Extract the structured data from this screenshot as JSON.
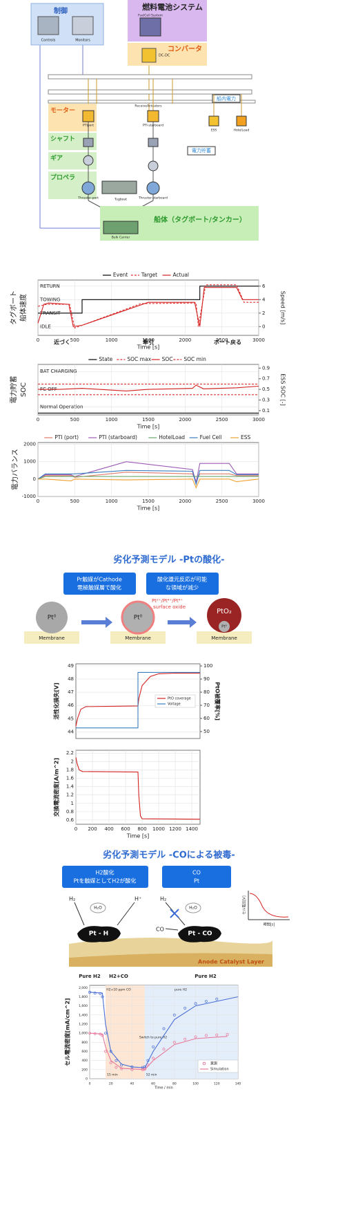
{
  "diagram": {
    "control": {
      "title": "制御",
      "items": [
        "Controls",
        "Monitors"
      ]
    },
    "fuel_cell": {
      "title": "燃料電池システム",
      "label": "FuelCell System"
    },
    "converter": {
      "title": "コンバータ",
      "label": "DC-DC"
    },
    "bus": "ReceiveActuators",
    "onboard_power": "船内電力",
    "storage": "電力貯蓄",
    "groups": [
      "モーター",
      "シャフト",
      "ギア",
      "プロペラ"
    ],
    "components": [
      "PTIport",
      "PTI-starboard",
      "Thruster-port",
      "Thruster-starboard",
      "Tugboat",
      "Contact_Contact",
      "ESS",
      "HotelLoad",
      "Bulk Carrier"
    ],
    "hull": "船体（タグボート/タンカー）"
  },
  "pt_section": {
    "title": "劣化予測モデル  -Ptの酸化-",
    "notes": [
      [
        "Pr触媒がCathode",
        "電極触媒層で酸化"
      ],
      [
        "酸化還元反応が可能",
        "な領域が減少"
      ]
    ],
    "particles": [
      "Pt⁰",
      "Pt⁰",
      "PtO₂",
      "Pt⁰"
    ],
    "oxide": [
      "Pt²⁺/Pt⁴⁺/Pt⁴⁺",
      "surface oxide"
    ],
    "membrane": [
      "Membrane",
      "Membrane",
      "Membrane"
    ]
  },
  "co_section": {
    "title": "劣化予測モデル  -COによる被毒-",
    "notes": [
      [
        "H2酸化",
        "Ptを触媒としてH2が酸化"
      ],
      [
        "CO",
        "Pt"
      ]
    ],
    "species": [
      "H₂",
      "H₂O",
      "H⁺",
      "H₂",
      "H₂O",
      "CO"
    ],
    "sites": [
      "Pt - H",
      "Pt - CO"
    ],
    "layer": "Anode Catalyst Layer",
    "inset": {
      "ylabel": "セル電圧[V]",
      "xlabel": "時間[s]"
    }
  },
  "chart_data": [
    {
      "type": "line",
      "ylabel": [
        "タグボート",
        "船体速度"
      ],
      "y2label": "Speed [m/s]",
      "xlabel": "Time [s]",
      "xlim": [
        0,
        3000
      ],
      "xticks": [
        0,
        500,
        1000,
        1500,
        2000,
        2500,
        3000
      ],
      "ylim": [
        -1.3,
        6.9
      ],
      "yticks": [
        {
          "value": 6,
          "label": "RETURN"
        },
        {
          "value": 4,
          "label": "TOWING"
        },
        {
          "value": 2,
          "label": "TRANSIT"
        },
        {
          "value": 0,
          "label": "IDLE"
        }
      ],
      "y2lim": [
        -1.3,
        6.9
      ],
      "y2ticks": [
        0,
        2,
        4,
        6
      ],
      "grid": true,
      "legend": "top",
      "annotations": [
        "近づく",
        "牽引",
        "ボート戻る"
      ],
      "series": [
        {
          "name": "Event",
          "color": "#000000",
          "x": [
            0,
            600,
            600,
            2200,
            2200,
            3000
          ],
          "values": [
            2,
            2,
            4,
            4,
            6,
            6
          ]
        },
        {
          "name": "Target",
          "color": "#e03030",
          "dash": true,
          "axis": "y2",
          "x": [
            0,
            120,
            430,
            500,
            1400,
            2150,
            2180,
            2280,
            2700,
            2800,
            3000
          ],
          "values": [
            3.0,
            3.3,
            3.3,
            -0.2,
            3.4,
            3.5,
            0,
            6.2,
            6.2,
            3.6,
            3.6
          ]
        },
        {
          "name": "Actual",
          "color": "#d42020",
          "axis": "y2",
          "x": [
            0,
            80,
            150,
            420,
            480,
            600,
            1500,
            2130,
            2200,
            2260,
            2700,
            2780,
            3000
          ],
          "values": [
            0.5,
            3.3,
            3.5,
            3.3,
            0,
            0.2,
            3.6,
            3.6,
            0,
            5.8,
            5.8,
            4,
            4
          ]
        }
      ]
    },
    {
      "type": "line",
      "ylabel": [
        "電力貯蓄",
        "SOC"
      ],
      "y2label": "ESS SOC [-]",
      "xlabel": "Time [s]",
      "xlim": [
        0,
        3000
      ],
      "xticks": [
        0,
        500,
        1000,
        1500,
        2000,
        2500,
        3000
      ],
      "ylim": [
        -0.45,
        2.4
      ],
      "yticks": [
        {
          "value": 2,
          "label": "BAT CHARGING"
        },
        {
          "value": 1,
          "label": "FC OFF"
        },
        {
          "value": 0,
          "label": "Normal Operation"
        }
      ],
      "y2lim": [
        0.02,
        0.97
      ],
      "y2ticks": [
        0.1,
        0.3,
        0.5,
        0.7,
        0.9
      ],
      "grid": true,
      "legend": "top",
      "series": [
        {
          "name": "State",
          "color": "#000000",
          "x": [
            0,
            3000
          ],
          "values": [
            -0.35,
            -0.35
          ]
        },
        {
          "name": "SOC max",
          "color": "#e03030",
          "dash": true,
          "axis": "y2",
          "x": [
            0,
            3000
          ],
          "values": [
            0.6,
            0.6
          ]
        },
        {
          "name": "SOC",
          "color": "#d42020",
          "axis": "y2",
          "x": [
            0,
            300,
            600,
            1200,
            1500,
            2100,
            2150,
            2250,
            2700,
            3000
          ],
          "values": [
            0.5,
            0.5,
            0.52,
            0.47,
            0.5,
            0.52,
            0.58,
            0.51,
            0.53,
            0.56
          ]
        },
        {
          "name": "SOC min",
          "color": "#e03030",
          "dash": true,
          "axis": "y2",
          "x": [
            0,
            3000
          ],
          "values": [
            0.4,
            0.4
          ]
        }
      ]
    },
    {
      "type": "line",
      "ylabel": [
        "電力バランス"
      ],
      "xlabel": "Time [s]",
      "xlim": [
        0,
        3000
      ],
      "xticks": [
        0,
        500,
        1000,
        1500,
        2000,
        2500,
        3000
      ],
      "ylim": [
        -1000,
        2100
      ],
      "yticks": [
        -1000,
        0,
        1000,
        2000
      ],
      "grid": true,
      "legend": "top",
      "x": [
        0,
        100,
        450,
        500,
        1200,
        2100,
        2150,
        2200,
        2600,
        2700,
        3000
      ],
      "series": [
        {
          "name": "PTI (port)",
          "color": "#e07b6a",
          "values": [
            0,
            200,
            200,
            100,
            400,
            300,
            -100,
            300,
            300,
            200,
            200
          ]
        },
        {
          "name": "PTI (starboard)",
          "color": "#9b59b6",
          "values": [
            0,
            250,
            250,
            150,
            1000,
            550,
            -200,
            900,
            900,
            300,
            300
          ]
        },
        {
          "name": "HotelLoad",
          "color": "#6aa86a",
          "values": [
            0,
            150,
            150,
            150,
            150,
            150,
            150,
            150,
            150,
            150,
            150
          ]
        },
        {
          "name": "Fuel Cell",
          "color": "#3a7ebf",
          "values": [
            0,
            300,
            300,
            300,
            500,
            450,
            -300,
            500,
            500,
            250,
            250
          ]
        },
        {
          "name": "ESS",
          "color": "#f0a030",
          "values": [
            0,
            0,
            -100,
            0,
            -50,
            0,
            -500,
            0,
            0,
            -150,
            0
          ]
        }
      ]
    },
    {
      "type": "line",
      "ylabel": [
        "活性化損失[V]"
      ],
      "y2label": "PtO被覆率[%]",
      "xlim": [
        0,
        1500
      ],
      "ylim": [
        43.5,
        49.15
      ],
      "yticks": [
        44,
        45,
        46,
        47,
        48,
        49
      ],
      "y2lim": [
        44.7,
        101.6
      ],
      "y2ticks": [
        50,
        60,
        70,
        80,
        90,
        100
      ],
      "grid": true,
      "legend": "center right",
      "series": [
        {
          "name": "PtO coverage",
          "color": "#d42020",
          "axis": "y2",
          "x": [
            0,
            20,
            60,
            120,
            750,
            760,
            800,
            900,
            1000,
            1200,
            1500
          ],
          "values": [
            54,
            60,
            67,
            69,
            69.5,
            75,
            85,
            92,
            94,
            94.5,
            94.5
          ]
        },
        {
          "name": "Voltage",
          "color": "#3a7ebf",
          "x": [
            0,
            750,
            750,
            1500
          ],
          "values": [
            44.3,
            44.3,
            48.5,
            48.5
          ]
        }
      ]
    },
    {
      "type": "line",
      "ylabel": [
        "交換電流密度[A/m^2]"
      ],
      "xlabel": "Time [s]",
      "xlim": [
        0,
        1500
      ],
      "xticks": [
        0,
        200,
        400,
        600,
        800,
        1000,
        1200,
        1400
      ],
      "ylim": [
        0.5,
        2.27
      ],
      "yticks": [
        0.6,
        0.8,
        1.0,
        1.2,
        1.4,
        1.6,
        1.8,
        2.0,
        2.2
      ],
      "grid": true,
      "series": [
        {
          "color": "#d42020",
          "x": [
            0,
            15,
            40,
            80,
            750,
            760,
            780,
            800,
            1500
          ],
          "values": [
            2.1,
            1.95,
            1.8,
            1.76,
            1.75,
            1.2,
            0.7,
            0.63,
            0.62
          ]
        }
      ]
    },
    {
      "type": "line",
      "ylabel": [
        "セル電流密度[mA/cm^2]"
      ],
      "xlabel": "Time / min",
      "xlim": [
        0,
        140
      ],
      "xticks": [
        0,
        20,
        40,
        60,
        80,
        100,
        120,
        140
      ],
      "ylim": [
        0,
        2050
      ],
      "yticks": [
        0,
        200,
        400,
        600,
        800,
        {
          "value": 1000,
          "label": "1,000"
        },
        {
          "value": 1200,
          "label": "1,200"
        },
        {
          "value": 1400,
          "label": "1,400"
        },
        {
          "value": 1600,
          "label": "1,600"
        },
        {
          "value": 1800,
          "label": "1,800"
        },
        {
          "value": 2000,
          "label": "2,000"
        }
      ],
      "grid": true,
      "legend": "lower right",
      "annotations": [
        "Pure H2",
        "H2+CO",
        "Pure H2",
        "H2+10 ppm CO",
        "pure H2",
        "Switch to pure H2"
      ],
      "switch_times": [
        {
          "value": 15,
          "label": "15 min"
        },
        {
          "value": 52,
          "label": "52 min"
        }
      ],
      "series": [
        {
          "color": "#4a6fd6",
          "marker": true,
          "x": [
            0,
            5,
            10,
            12,
            15,
            20,
            25,
            30,
            40,
            50,
            52,
            55,
            60,
            70,
            80,
            90,
            100,
            110,
            120
          ],
          "values": [
            1900,
            1880,
            1870,
            1800,
            1000,
            600,
            400,
            300,
            260,
            250,
            260,
            400,
            700,
            1100,
            1400,
            1550,
            1650,
            1700,
            1750
          ]
        },
        {
          "color": "#4a6fd6",
          "x": [
            0,
            12,
            15,
            20,
            30,
            40,
            52,
            60,
            80,
            100,
            140
          ],
          "values": [
            1900,
            1880,
            1200,
            600,
            320,
            260,
            240,
            600,
            1300,
            1600,
            1800
          ]
        },
        {
          "name": "実測",
          "color": "#e8779a",
          "marker": true,
          "x": [
            0,
            5,
            10,
            12,
            15,
            20,
            25,
            30,
            40,
            50,
            52,
            55,
            60,
            70,
            80,
            90,
            100,
            110,
            120,
            130
          ],
          "values": [
            1000,
            990,
            980,
            950,
            600,
            350,
            250,
            220,
            200,
            200,
            210,
            300,
            450,
            650,
            800,
            870,
            920,
            950,
            960,
            970
          ]
        },
        {
          "name": "Simulation",
          "color": "#e8779a",
          "x": [
            0,
            12,
            15,
            20,
            30,
            52,
            60,
            80,
            100,
            130
          ],
          "values": [
            1000,
            980,
            700,
            400,
            230,
            200,
            400,
            750,
            880,
            930
          ]
        }
      ]
    }
  ]
}
